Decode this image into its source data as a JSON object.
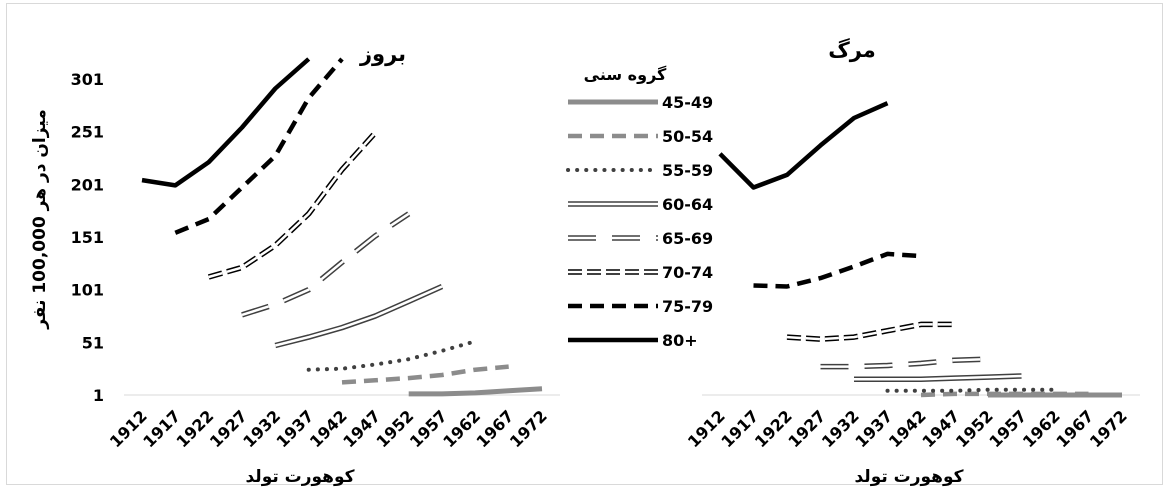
{
  "ylabel": "میزان در هر 100,000 نفر",
  "legend_title": "گروه سنی",
  "colors": {
    "gray": "#8c8c8c",
    "dark": "#404040",
    "black": "#000000"
  },
  "chart_data": [
    {
      "type": "line",
      "title": "بروز",
      "xlabel": "کوهورت تولد",
      "ylabel": "میزان در هر 100,000 نفر",
      "x": [
        1912,
        1917,
        1922,
        1927,
        1932,
        1937,
        1942,
        1947,
        1952,
        1957,
        1962,
        1967,
        1972
      ],
      "y_ticks": [
        1,
        51,
        101,
        151,
        201,
        251,
        301
      ],
      "ylim": [
        1,
        301
      ],
      "legend": "center",
      "series": [
        {
          "name": "45-49",
          "values": [
            null,
            null,
            null,
            null,
            null,
            null,
            null,
            null,
            2,
            2,
            3,
            5,
            7
          ]
        },
        {
          "name": "50-54",
          "values": [
            null,
            null,
            null,
            null,
            null,
            null,
            13,
            15,
            17,
            20,
            25,
            28,
            null
          ]
        },
        {
          "name": "55-59",
          "values": [
            null,
            null,
            null,
            null,
            null,
            25,
            26,
            30,
            35,
            43,
            52,
            null,
            null
          ]
        },
        {
          "name": "60-64",
          "values": [
            null,
            null,
            null,
            null,
            48,
            56,
            65,
            76,
            90,
            104,
            null,
            null,
            null
          ]
        },
        {
          "name": "65-69",
          "values": [
            null,
            null,
            null,
            77,
            87,
            101,
            127,
            152,
            173,
            null,
            null,
            null,
            null
          ]
        },
        {
          "name": "70-74",
          "values": [
            null,
            null,
            113,
            122,
            143,
            173,
            215,
            250,
            null,
            null,
            null,
            null,
            null
          ]
        },
        {
          "name": "75-79",
          "values": [
            null,
            155,
            168,
            198,
            228,
            283,
            320,
            null,
            null,
            null,
            null,
            null,
            null
          ]
        },
        {
          "name": "80+",
          "values": [
            205,
            200,
            222,
            255,
            292,
            320,
            null,
            null,
            null,
            null,
            null,
            null,
            null
          ]
        }
      ]
    },
    {
      "type": "line",
      "title": "مرگ",
      "xlabel": "کوهورت تولد",
      "x": [
        1912,
        1917,
        1922,
        1927,
        1932,
        1937,
        1942,
        1947,
        1952,
        1957,
        1962,
        1967,
        1972
      ],
      "ylim": [
        1,
        301
      ],
      "series": [
        {
          "name": "45-49",
          "values": [
            null,
            null,
            null,
            null,
            null,
            null,
            null,
            null,
            1,
            1,
            1,
            1,
            1
          ]
        },
        {
          "name": "50-54",
          "values": [
            null,
            null,
            null,
            null,
            null,
            null,
            1,
            2,
            2,
            2,
            2,
            2,
            null
          ]
        },
        {
          "name": "55-59",
          "values": [
            null,
            null,
            null,
            null,
            null,
            5,
            5,
            5,
            6,
            6,
            6,
            null,
            null
          ]
        },
        {
          "name": "60-64",
          "values": [
            null,
            null,
            null,
            null,
            16,
            16,
            16,
            17,
            18,
            19,
            null,
            null,
            null
          ]
        },
        {
          "name": "65-69",
          "values": [
            null,
            null,
            null,
            28,
            28,
            29,
            31,
            34,
            35,
            null,
            null,
            null,
            null
          ]
        },
        {
          "name": "70-74",
          "values": [
            null,
            null,
            56,
            54,
            56,
            62,
            68,
            68,
            null,
            null,
            null,
            null,
            null
          ]
        },
        {
          "name": "75-79",
          "values": [
            null,
            105,
            104,
            112,
            123,
            135,
            133,
            null,
            null,
            null,
            null,
            null,
            null
          ]
        },
        {
          "name": "80+",
          "values": [
            230,
            198,
            210,
            238,
            264,
            278,
            null,
            null,
            null,
            null,
            null,
            null,
            null
          ]
        }
      ]
    }
  ]
}
